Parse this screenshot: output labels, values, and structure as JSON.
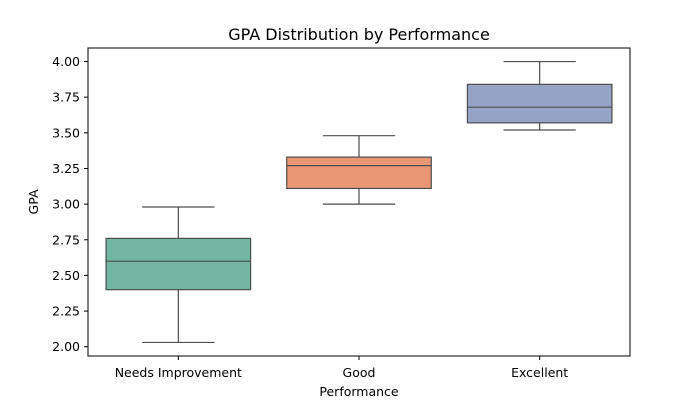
{
  "chart_data": {
    "type": "box",
    "title": "GPA Distribution by Performance",
    "xlabel": "Performance",
    "ylabel": "GPA",
    "ylim": [
      1.935,
      4.095
    ],
    "yticks": [
      "2.00",
      "2.25",
      "2.50",
      "2.75",
      "3.00",
      "3.25",
      "3.50",
      "3.75",
      "4.00"
    ],
    "grid": false,
    "categories": [
      "Needs Improvement",
      "Good",
      "Excellent"
    ],
    "boxes": [
      {
        "category": "Needs Improvement",
        "whisker_low": 2.03,
        "q1": 2.4,
        "median": 2.6,
        "q3": 2.76,
        "whisker_high": 2.98,
        "color": "#73b7a2"
      },
      {
        "category": "Good",
        "whisker_low": 3.0,
        "q1": 3.11,
        "median": 3.27,
        "q3": 3.33,
        "whisker_high": 3.48,
        "color": "#e99675"
      },
      {
        "category": "Excellent",
        "whisker_low": 3.52,
        "q1": 3.57,
        "median": 3.68,
        "q3": 3.84,
        "whisker_high": 4.0,
        "color": "#95a3c6"
      }
    ]
  }
}
